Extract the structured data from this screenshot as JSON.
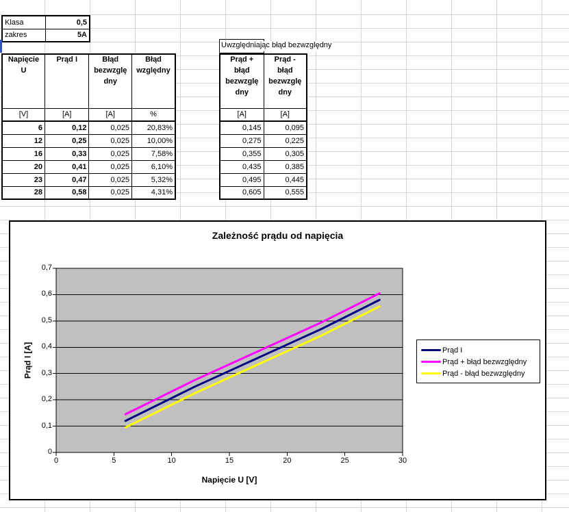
{
  "sheet": {
    "info_table": {
      "rows": [
        {
          "label": "Klasa",
          "value": "0,5"
        },
        {
          "label": "zakres",
          "value": "5A"
        }
      ]
    },
    "main_table": {
      "headers": [
        "Napięcie\nU",
        "Prąd I",
        "Błąd\nbezwzglę\ndny",
        "Błąd\nwzględny"
      ],
      "units": [
        "[V]",
        "[A]",
        "[A]",
        "%"
      ],
      "rows": [
        [
          "6",
          "0,12",
          "0,025",
          "20,83%"
        ],
        [
          "12",
          "0,25",
          "0,025",
          "10,00%"
        ],
        [
          "16",
          "0,33",
          "0,025",
          "7,58%"
        ],
        [
          "20",
          "0,41",
          "0,025",
          "6,10%"
        ],
        [
          "23",
          "0,47",
          "0,025",
          "5,32%"
        ],
        [
          "28",
          "0,58",
          "0,025",
          "4,31%"
        ]
      ]
    },
    "error_table": {
      "title": "Uwzględniając błąd bezwzględny",
      "headers": [
        "Prąd +\nbłąd\nbezwzglę\ndny",
        "Prąd -\nbłąd\nbezwzglę\ndny"
      ],
      "units": [
        "[A]",
        "[A]"
      ],
      "rows": [
        [
          "0,145",
          "0,095"
        ],
        [
          "0,275",
          "0,225"
        ],
        [
          "0,355",
          "0,305"
        ],
        [
          "0,435",
          "0,385"
        ],
        [
          "0,495",
          "0,445"
        ],
        [
          "0,605",
          "0,555"
        ]
      ]
    }
  },
  "chart_data": {
    "type": "line",
    "title": "Zależność prądu od napięcia",
    "xlabel": "Napięcie U [V]",
    "ylabel": "Prąd I [A]",
    "x": [
      6,
      12,
      16,
      20,
      23,
      28
    ],
    "series": [
      {
        "name": "Prąd I",
        "color": "#000080",
        "values": [
          0.12,
          0.25,
          0.33,
          0.41,
          0.47,
          0.58
        ]
      },
      {
        "name": "Prąd + błąd bezwzględny",
        "color": "#FF00FF",
        "values": [
          0.145,
          0.275,
          0.355,
          0.435,
          0.495,
          0.605
        ]
      },
      {
        "name": "Prąd - błąd bezwzględny",
        "color": "#FFFF00",
        "values": [
          0.095,
          0.225,
          0.305,
          0.385,
          0.445,
          0.555
        ]
      }
    ],
    "xlim": [
      0,
      30
    ],
    "ylim": [
      0,
      0.7
    ],
    "xticks": [
      0,
      5,
      10,
      15,
      20,
      25,
      30
    ],
    "xtick_labels": [
      "0",
      "5",
      "10",
      "15",
      "20",
      "25",
      "30"
    ],
    "yticks": [
      0,
      0.1,
      0.2,
      0.3,
      0.4,
      0.5,
      0.6,
      0.7
    ],
    "ytick_labels": [
      "0",
      "0,1",
      "0,2",
      "0,3",
      "0,4",
      "0,5",
      "0,6",
      "0,7"
    ],
    "grid": "horizontal-major",
    "legend_position": "right",
    "plot_bg": "#C0C0C0",
    "chart_bg": "#FFFFFF"
  }
}
